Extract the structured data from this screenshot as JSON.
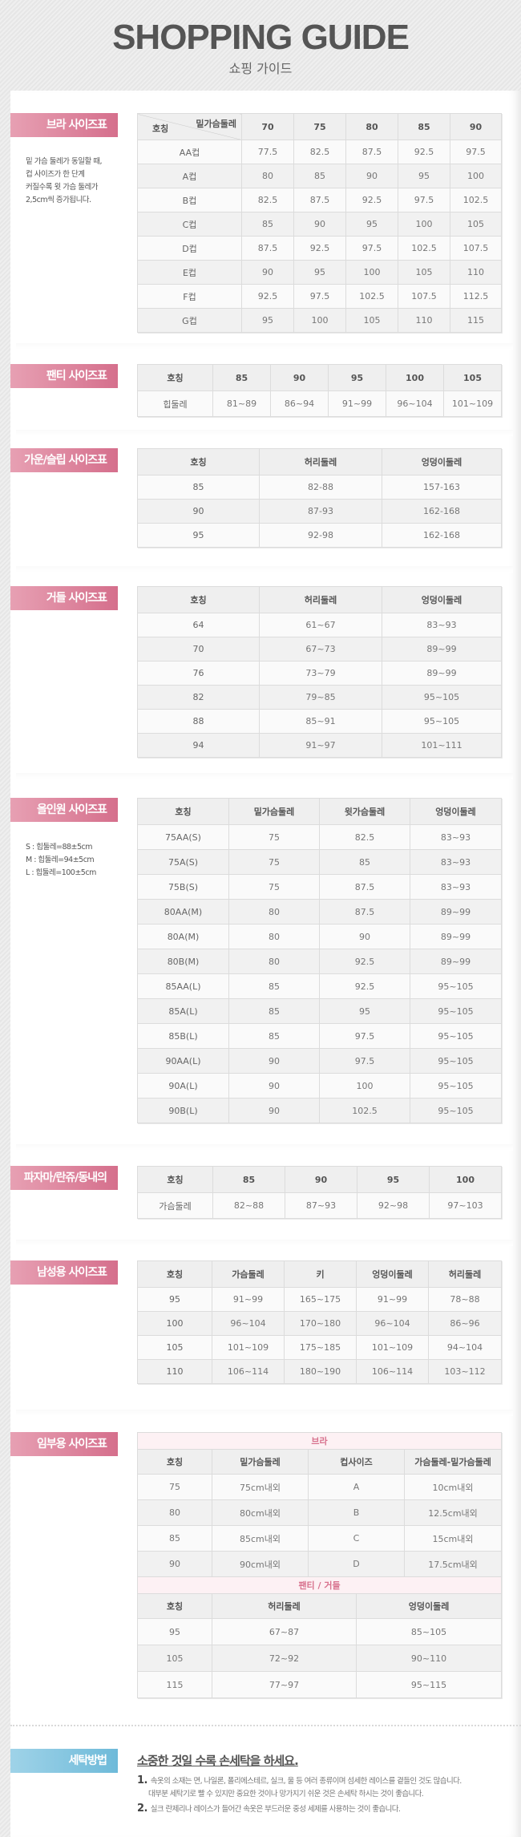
{
  "header": {
    "title": "SHOPPING GUIDE",
    "subtitle": "쇼핑 가이드"
  },
  "colors": {
    "label_pink": "#d56f8c",
    "label_blue": "#6ebad9",
    "caption_pink": "#d8728e"
  },
  "bra": {
    "label": "브라 사이즈표",
    "note": [
      "밑 가슴 둘레가 동일할 때,",
      "컵 사이즈가 한 단계",
      "커질수록 윗 가슴 둘레가",
      "2,5cm씩 증가됩니다."
    ],
    "corner_top": "밑가슴둘레",
    "corner_bottom": "호칭",
    "columns": [
      "70",
      "75",
      "80",
      "85",
      "90"
    ],
    "rows": [
      [
        "AA컵",
        "77.5",
        "82.5",
        "87.5",
        "92.5",
        "97.5"
      ],
      [
        "A컵",
        "80",
        "85",
        "90",
        "95",
        "100"
      ],
      [
        "B컵",
        "82.5",
        "87.5",
        "92.5",
        "97.5",
        "102.5"
      ],
      [
        "C컵",
        "85",
        "90",
        "95",
        "100",
        "105"
      ],
      [
        "D컵",
        "87.5",
        "92.5",
        "97.5",
        "102.5",
        "107.5"
      ],
      [
        "E컵",
        "90",
        "95",
        "100",
        "105",
        "110"
      ],
      [
        "F컵",
        "92.5",
        "97.5",
        "102.5",
        "107.5",
        "112.5"
      ],
      [
        "G컵",
        "95",
        "100",
        "105",
        "110",
        "115"
      ]
    ]
  },
  "panty": {
    "label": "팬티 사이즈표",
    "columns": [
      "호칭",
      "85",
      "90",
      "95",
      "100",
      "105"
    ],
    "rows": [
      [
        "힙둘레",
        "81~89",
        "86~94",
        "91~99",
        "96~104",
        "101~109"
      ]
    ]
  },
  "gown": {
    "label": "가운/슬립 사이즈표",
    "columns": [
      "호칭",
      "허리둘레",
      "엉덩이둘레"
    ],
    "rows": [
      [
        "85",
        "82-88",
        "157-163"
      ],
      [
        "90",
        "87-93",
        "162-168"
      ],
      [
        "95",
        "92-98",
        "162-168"
      ]
    ]
  },
  "girdle": {
    "label": "거들 사이즈표",
    "columns": [
      "호칭",
      "허리둘레",
      "엉덩이둘레"
    ],
    "rows": [
      [
        "64",
        "61~67",
        "83~93"
      ],
      [
        "70",
        "67~73",
        "89~99"
      ],
      [
        "76",
        "73~79",
        "89~99"
      ],
      [
        "82",
        "79~85",
        "95~105"
      ],
      [
        "88",
        "85~91",
        "95~105"
      ],
      [
        "94",
        "91~97",
        "101~111"
      ]
    ]
  },
  "allinone": {
    "label": "올인원 사이즈표",
    "note": [
      "S : 힙둘레=88±5cm",
      "M : 힙둘레=94±5cm",
      "L : 힙둘레=100±5cm"
    ],
    "columns": [
      "호칭",
      "밑가슴둘레",
      "윗가슴둘레",
      "엉덩이둘레"
    ],
    "rows": [
      [
        "75AA(S)",
        "75",
        "82.5",
        "83~93"
      ],
      [
        "75A(S)",
        "75",
        "85",
        "83~93"
      ],
      [
        "75B(S)",
        "75",
        "87.5",
        "83~93"
      ],
      [
        "80AA(M)",
        "80",
        "87.5",
        "89~99"
      ],
      [
        "80A(M)",
        "80",
        "90",
        "89~99"
      ],
      [
        "80B(M)",
        "80",
        "92.5",
        "89~99"
      ],
      [
        "85AA(L)",
        "85",
        "92.5",
        "95~105"
      ],
      [
        "85A(L)",
        "85",
        "95",
        "95~105"
      ],
      [
        "85B(L)",
        "85",
        "97.5",
        "95~105"
      ],
      [
        "90AA(L)",
        "90",
        "97.5",
        "95~105"
      ],
      [
        "90A(L)",
        "90",
        "100",
        "95~105"
      ],
      [
        "90B(L)",
        "90",
        "102.5",
        "95~105"
      ]
    ]
  },
  "pajama": {
    "label": "파자마/란쥬/동내의",
    "columns": [
      "호칭",
      "85",
      "90",
      "95",
      "100"
    ],
    "rows": [
      [
        "가슴둘레",
        "82~88",
        "87~93",
        "92~98",
        "97~103"
      ]
    ]
  },
  "men": {
    "label": "남성용 사이즈표",
    "columns": [
      "호칭",
      "가슴둘레",
      "키",
      "엉덩이둘레",
      "허리둘레"
    ],
    "rows": [
      [
        "95",
        "91~99",
        "165~175",
        "91~99",
        "78~88"
      ],
      [
        "100",
        "96~104",
        "170~180",
        "96~104",
        "86~96"
      ],
      [
        "105",
        "101~109",
        "175~185",
        "101~109",
        "94~104"
      ],
      [
        "110",
        "106~114",
        "180~190",
        "106~114",
        "103~112"
      ]
    ]
  },
  "maternity": {
    "label": "임부용 사이즈표",
    "bra_caption": "브라",
    "bra_columns": [
      "호칭",
      "밑가슴둘레",
      "컵사이즈",
      "가슴둘레-밑가슴둘레"
    ],
    "bra_rows": [
      [
        "75",
        "75cm내외",
        "A",
        "10cm내외"
      ],
      [
        "80",
        "80cm내외",
        "B",
        "12.5cm내외"
      ],
      [
        "85",
        "85cm내외",
        "C",
        "15cm내외"
      ],
      [
        "90",
        "90cm내외",
        "D",
        "17.5cm내외"
      ]
    ],
    "panty_caption": "팬티 / 거들",
    "panty_columns": [
      "호칭",
      "허리둘레",
      "엉덩이둘레"
    ],
    "panty_rows": [
      [
        "95",
        "67~87",
        "85~105"
      ],
      [
        "105",
        "72~92",
        "90~110"
      ],
      [
        "115",
        "77~97",
        "95~115"
      ]
    ]
  },
  "washing": {
    "label": "세탁방법",
    "heading": "소중한 것일 수록 손세탁을 하세요.",
    "items": [
      {
        "num": "1.",
        "lines": [
          "속옷의 소재는 면, 나일론, 폴리에스테르, 실크, 울 등 여러 종류이며 섬세한 레이스를 곁들인 것도 많습니다.",
          "대부분 세탁기로 빨 수 있지만 중요한 것이나 망가지기 쉬운 것은 손세탁 하시는 것이 좋습니다."
        ]
      },
      {
        "num": "2.",
        "lines": [
          "실크 란제리나 레이스가 들어간 속옷은 부드러운 중성 세제를 사용하는 것이 좋습니다."
        ]
      }
    ]
  }
}
